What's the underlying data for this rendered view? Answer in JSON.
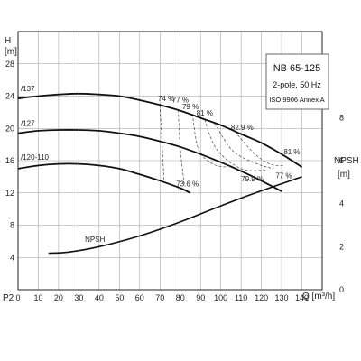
{
  "chart_data": {
    "type": "line",
    "title": "NB 65-125",
    "subtitle_lines": [
      "2-pole, 50 Hz",
      "ISO 9906 Annex A"
    ],
    "ylabel": "H",
    "ylabel_unit": "[m]",
    "xlabel": "Q [m³/h]",
    "y2label": "NPSH",
    "y2label_unit": "[m]",
    "p2_label": "P2",
    "xlim": [
      0,
      150
    ],
    "ylim": [
      0,
      32
    ],
    "y2lim": [
      0,
      12
    ],
    "x_ticks": [
      0,
      10,
      20,
      30,
      40,
      50,
      60,
      70,
      80,
      90,
      100,
      110,
      120,
      130,
      140
    ],
    "y_ticks": [
      4,
      8,
      12,
      16,
      20,
      24,
      28
    ],
    "y2_ticks": [
      0,
      2,
      4,
      6,
      8
    ],
    "grid": true,
    "series": [
      {
        "name": "/137",
        "axis": "H",
        "x": [
          0,
          10,
          20,
          30,
          40,
          50,
          60,
          70,
          80,
          90,
          100,
          110,
          120,
          130,
          140
        ],
        "y": [
          23.7,
          24.0,
          24.2,
          24.3,
          24.2,
          24.0,
          23.5,
          22.9,
          22.2,
          21.3,
          20.4,
          19.3,
          18.2,
          16.8,
          15.2
        ]
      },
      {
        "name": "/127",
        "axis": "H",
        "x": [
          0,
          10,
          20,
          30,
          40,
          50,
          60,
          70,
          80,
          90,
          100,
          110,
          120,
          130
        ],
        "y": [
          19.4,
          19.7,
          19.8,
          19.8,
          19.7,
          19.4,
          19.0,
          18.4,
          17.7,
          16.8,
          15.8,
          14.7,
          13.5,
          12.2
        ]
      },
      {
        "name": "/120-110",
        "axis": "H",
        "x": [
          0,
          10,
          20,
          30,
          40,
          50,
          60,
          70,
          80,
          85
        ],
        "y": [
          15.0,
          15.4,
          15.6,
          15.6,
          15.4,
          15.0,
          14.3,
          13.5,
          12.6,
          12.0
        ]
      },
      {
        "name": "NPSH",
        "axis": "NPSH",
        "x": [
          15,
          25,
          40,
          60,
          80,
          100,
          120,
          140
        ],
        "y": [
          1.7,
          1.75,
          2.0,
          2.5,
          3.15,
          3.9,
          4.6,
          5.25
        ]
      }
    ],
    "efficiency_labels": [
      {
        "text": "74 %"
      },
      {
        "text": "77 %"
      },
      {
        "text": "79 %"
      },
      {
        "text": "81 %"
      },
      {
        "text": "82.9 %"
      },
      {
        "text": "81 %"
      },
      {
        "text": "73.6 %"
      },
      {
        "text": "79.9 %"
      },
      {
        "text": "77 %"
      }
    ]
  }
}
